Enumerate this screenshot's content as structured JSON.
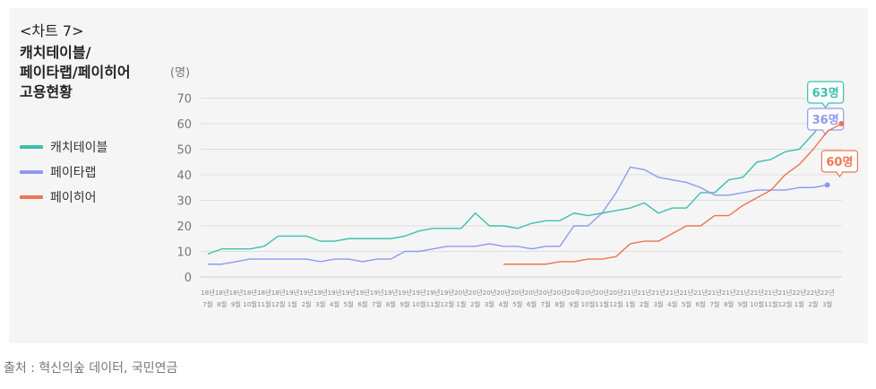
{
  "title_lines": [
    "<차트 7>",
    "캐치테이블/",
    "페이타랩/페이히어",
    "고용현황"
  ],
  "source": "출처 : 혁신의숲 데이터, 국민연금",
  "colors": {
    "catchtable": "#3cc0ae",
    "paytalab": "#8d9af0",
    "payhere": "#ef7453",
    "grid": "#dedede",
    "axis_text": "#777777"
  },
  "chart_data": {
    "type": "line",
    "ylabel": "(명)",
    "ylim": [
      0,
      70
    ],
    "yticks": [
      0,
      10,
      20,
      30,
      40,
      50,
      60,
      70
    ],
    "x_year_labels": [
      "18년",
      "18년",
      "18년",
      "18년",
      "18년",
      "18년",
      "19년",
      "19년",
      "19년",
      "19년",
      "19년",
      "19년",
      "19년",
      "19년",
      "19년",
      "19년",
      "19년",
      "19년",
      "20년",
      "20년",
      "20년",
      "20년",
      "20년",
      "20년",
      "20년",
      "20년",
      "20年",
      "20년",
      "20년",
      "20년",
      "21년",
      "21년",
      "21년",
      "21년",
      "21년",
      "21년",
      "21년",
      "21년",
      "21년",
      "21년",
      "21년",
      "21년",
      "22년",
      "22년",
      "22년"
    ],
    "x_month_labels": [
      "7월",
      "8월",
      "9월",
      "10월",
      "11월",
      "12월",
      "1월",
      "2월",
      "3월",
      "4월",
      "5월",
      "6월",
      "7월",
      "8월",
      "9월",
      "10월",
      "11월",
      "12월",
      "1월",
      "2월",
      "3월",
      "4월",
      "5월",
      "6월",
      "7월",
      "8월",
      "9월",
      "10월",
      "11월",
      "12월",
      "1월",
      "2월",
      "3월",
      "4월",
      "5월",
      "6월",
      "7월",
      "8월",
      "9월",
      "10월",
      "11월",
      "12월",
      "1월",
      "2월",
      "3월"
    ],
    "series": [
      {
        "name": "캐치테이블",
        "color": "#3cc0ae",
        "start_index": 0,
        "values": [
          9,
          11,
          11,
          11,
          12,
          16,
          16,
          16,
          14,
          14,
          15,
          15,
          15,
          15,
          16,
          18,
          19,
          19,
          19,
          25,
          20,
          20,
          19,
          21,
          22,
          22,
          25,
          24,
          25,
          26,
          27,
          29,
          25,
          27,
          27,
          33,
          33,
          38,
          39,
          45,
          46,
          49,
          50,
          56,
          63
        ],
        "end_label": "63명"
      },
      {
        "name": "페이타랩",
        "color": "#8d9af0",
        "start_index": 0,
        "values": [
          5,
          5,
          6,
          7,
          7,
          7,
          7,
          7,
          6,
          7,
          7,
          6,
          7,
          7,
          10,
          10,
          11,
          12,
          12,
          12,
          13,
          12,
          12,
          11,
          12,
          12,
          20,
          20,
          25,
          33,
          43,
          42,
          39,
          38,
          37,
          35,
          32,
          32,
          33,
          34,
          34,
          34,
          35,
          35,
          36
        ],
        "end_label": "36명"
      },
      {
        "name": "페이히어",
        "color": "#ef7453",
        "start_index": 21,
        "values": [
          5,
          5,
          5,
          5,
          6,
          6,
          7,
          7,
          8,
          13,
          14,
          14,
          17,
          20,
          20,
          24,
          24,
          28,
          31,
          34,
          40,
          44,
          50,
          57,
          60
        ],
        "end_label": "60명"
      }
    ]
  }
}
